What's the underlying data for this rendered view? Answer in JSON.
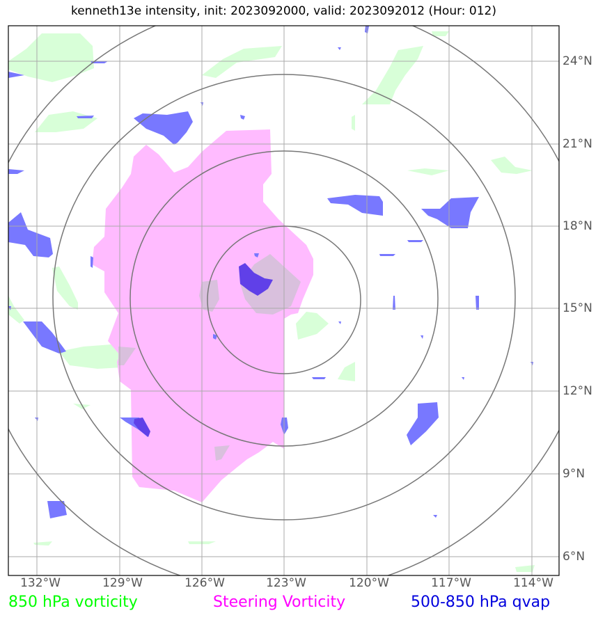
{
  "title": "kenneth13e intensity, init: 2023092000, valid: 2023092012 (Hour: 012)",
  "latitude_labels": [
    "24°N",
    "21°N",
    "18°N",
    "15°N",
    "12°N",
    "9°N",
    "6°N"
  ],
  "longitude_labels": [
    "132°W",
    "129°W",
    "126°W",
    "123°W",
    "120°W",
    "117°W",
    "114°W"
  ],
  "legend": {
    "vorticity_850": "850 hPa vorticity",
    "steering": "Steering Vorticity",
    "qvap": "500-850 hPa qvap"
  },
  "colors": {
    "vorticity_850": "#00ff00",
    "steering": "#ff00ff",
    "qvap": "#0000dd",
    "green_fill": "#d8ffd8",
    "pink_fill": "#ffbbff",
    "blue_fill": "#7878ff",
    "overlap_fill": "#d9c0dd",
    "deep_overlap_fill": "#6040e8",
    "grid": "#aaaaaa",
    "range_rings": "#777777"
  },
  "map": {
    "storm_center": "15.4°N 123°W",
    "range_rings": 4
  }
}
